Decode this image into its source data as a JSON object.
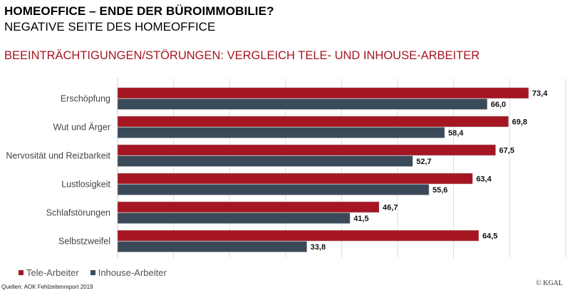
{
  "header": {
    "title": "HOMEOFFICE – ENDE DER BÜROIMMOBILIE?",
    "subtitle": "NEGATIVE SEITE DES HOMEOFFICE"
  },
  "colors": {
    "tele": "#A51622",
    "inhouse": "#3B4A58",
    "grid": "#dddddd"
  },
  "chart_data": {
    "type": "bar",
    "orientation": "horizontal",
    "title": "BEEINTRÄCHTIGUNGEN/STÖRUNGEN: VERGLEICH TELE- UND INHOUSE-ARBEITER",
    "xlabel": "",
    "ylabel": "",
    "xlim": [
      0,
      80
    ],
    "grid": true,
    "grid_step": 10,
    "legend_position": "bottom-left",
    "categories": [
      "Erschöpfung",
      "Wut und Ärger",
      "Nervosität und Reizbarkeit",
      "Lustlosigkeit",
      "Schlafstörungen",
      "Selbstzweifel"
    ],
    "series": [
      {
        "name": "Tele-Arbeiter",
        "values": [
          73.4,
          69.8,
          67.5,
          63.4,
          46.7,
          64.5
        ],
        "labels": [
          "73,4",
          "69,8",
          "67,5",
          "63,4",
          "46,7",
          "64,5"
        ]
      },
      {
        "name": "Inhouse-Arbeiter",
        "values": [
          66.0,
          58.4,
          52.7,
          55.6,
          41.5,
          33.8
        ],
        "labels": [
          "66,0",
          "58,4",
          "52,7",
          "55,6",
          "41,5",
          "33,8"
        ]
      }
    ]
  },
  "legend": {
    "items": [
      {
        "label": "Tele-Arbeiter"
      },
      {
        "label": "Inhouse-Arbeiter"
      }
    ]
  },
  "footer": {
    "source": "Quellen: AOK Fehlzeitenreport 2019",
    "copyright": "© KGAL"
  }
}
